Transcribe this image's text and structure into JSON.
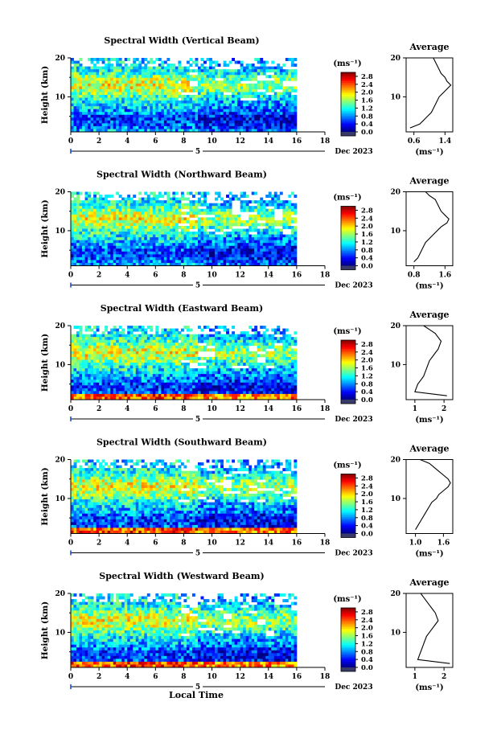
{
  "chart_data": [
    {
      "type": "heatmap",
      "title": "Spectral Width (Vertical Beam)",
      "ylabel": "Height (km)",
      "x_ticks": [
        "0",
        "2",
        "4",
        "6",
        "8",
        "10",
        "12",
        "14",
        "16",
        "18"
      ],
      "y_ticks": [
        "20",
        "10"
      ],
      "xlim": [
        0,
        18
      ],
      "ylim": [
        1,
        20
      ],
      "data_end_hour": 16,
      "date_day": "5",
      "date_label": "Dec 2023",
      "colorbar": {
        "unit": "(ms⁻¹)",
        "ticks": [
          "2.8",
          "2.4",
          "2.0",
          "1.6",
          "1.2",
          "0.8",
          "0.4",
          "0.0"
        ],
        "range": [
          0,
          3.0
        ]
      },
      "profile": {
        "title": "Average",
        "xlabel": "(ms⁻¹)",
        "x_ticks": [
          "0.6",
          "1.4"
        ],
        "xlim": [
          0.4,
          1.6
        ],
        "heights": [
          2,
          3,
          4,
          5,
          6,
          7,
          8,
          9,
          10,
          11,
          12,
          13,
          14,
          15,
          16,
          17,
          18,
          19,
          20
        ],
        "values": [
          0.5,
          0.75,
          0.85,
          0.95,
          1.05,
          1.1,
          1.15,
          1.2,
          1.25,
          1.35,
          1.45,
          1.55,
          1.45,
          1.4,
          1.3,
          1.25,
          1.2,
          1.15,
          1.1
        ]
      }
    },
    {
      "type": "heatmap",
      "title": "Spectral Width (Northward Beam)",
      "ylabel": "Height (km)",
      "x_ticks": [
        "0",
        "2",
        "4",
        "6",
        "8",
        "10",
        "12",
        "14",
        "16",
        "18"
      ],
      "y_ticks": [
        "20",
        "10"
      ],
      "xlim": [
        0,
        18
      ],
      "ylim": [
        1,
        20
      ],
      "data_end_hour": 16,
      "date_day": "5",
      "date_label": "Dec 2023",
      "colorbar": {
        "unit": "(ms⁻¹)",
        "ticks": [
          "2.8",
          "2.4",
          "2.0",
          "1.6",
          "1.2",
          "0.8",
          "0.4",
          "0.0"
        ],
        "range": [
          0,
          3.0
        ]
      },
      "profile": {
        "title": "Average",
        "xlabel": "(ms⁻¹)",
        "x_ticks": [
          "0.8",
          "1.6"
        ],
        "xlim": [
          0.6,
          1.8
        ],
        "heights": [
          2,
          3,
          4,
          5,
          6,
          7,
          8,
          9,
          10,
          11,
          12,
          13,
          14,
          15,
          16,
          17,
          18,
          19,
          20
        ],
        "values": [
          0.8,
          0.9,
          0.95,
          1.0,
          1.05,
          1.1,
          1.2,
          1.3,
          1.4,
          1.5,
          1.65,
          1.7,
          1.6,
          1.5,
          1.45,
          1.4,
          1.35,
          1.2,
          1.1
        ]
      }
    },
    {
      "type": "heatmap",
      "title": "Spectral Width (Eastward Beam)",
      "ylabel": "Height (km)",
      "x_ticks": [
        "0",
        "2",
        "4",
        "6",
        "8",
        "10",
        "12",
        "14",
        "16",
        "18"
      ],
      "y_ticks": [
        "20",
        "10"
      ],
      "xlim": [
        0,
        18
      ],
      "ylim": [
        1,
        20
      ],
      "data_end_hour": 16,
      "date_day": "5",
      "date_label": "Dec 2023",
      "colorbar": {
        "unit": "(ms⁻¹)",
        "ticks": [
          "2.8",
          "2.4",
          "2.0",
          "1.6",
          "1.2",
          "0.8",
          "0.4",
          "0.0"
        ],
        "range": [
          0,
          3.0
        ]
      },
      "profile": {
        "title": "Average",
        "xlabel": "(ms⁻¹)",
        "x_ticks": [
          "1",
          "2"
        ],
        "xlim": [
          0.7,
          2.3
        ],
        "heights": [
          2,
          3,
          4,
          5,
          6,
          7,
          8,
          9,
          10,
          11,
          12,
          13,
          14,
          15,
          16,
          17,
          18,
          19,
          20
        ],
        "values": [
          2.1,
          1.0,
          1.05,
          1.1,
          1.2,
          1.3,
          1.35,
          1.4,
          1.45,
          1.5,
          1.6,
          1.7,
          1.8,
          1.85,
          1.9,
          1.8,
          1.7,
          1.5,
          1.3
        ]
      }
    },
    {
      "type": "heatmap",
      "title": "Spectral Width (Southward Beam)",
      "ylabel": "Height (km)",
      "x_ticks": [
        "0",
        "2",
        "4",
        "6",
        "8",
        "10",
        "12",
        "14",
        "16",
        "18"
      ],
      "y_ticks": [
        "20",
        "10"
      ],
      "xlim": [
        0,
        18
      ],
      "ylim": [
        1,
        20
      ],
      "data_end_hour": 16,
      "date_day": "5",
      "date_label": "Dec 2023",
      "colorbar": {
        "unit": "(ms⁻¹)",
        "ticks": [
          "2.8",
          "2.4",
          "2.0",
          "1.6",
          "1.2",
          "0.8",
          "0.4",
          "0.0"
        ],
        "range": [
          0,
          3.0
        ]
      },
      "profile": {
        "title": "Average",
        "xlabel": "(ms⁻¹)",
        "x_ticks": [
          "1.0",
          "1.6"
        ],
        "xlim": [
          0.8,
          1.8
        ],
        "heights": [
          2,
          3,
          4,
          5,
          6,
          7,
          8,
          9,
          10,
          11,
          12,
          13,
          14,
          15,
          16,
          17,
          18,
          19,
          20
        ],
        "values": [
          1.0,
          1.05,
          1.1,
          1.15,
          1.2,
          1.25,
          1.3,
          1.35,
          1.45,
          1.5,
          1.6,
          1.7,
          1.75,
          1.7,
          1.6,
          1.5,
          1.4,
          1.3,
          1.1
        ]
      }
    },
    {
      "type": "heatmap",
      "title": "Spectral Width (Westward Beam)",
      "ylabel": "Height (km)",
      "xlabel": "Local Time",
      "x_ticks": [
        "0",
        "2",
        "4",
        "6",
        "8",
        "10",
        "12",
        "14",
        "16",
        "18"
      ],
      "y_ticks": [
        "20",
        "10"
      ],
      "xlim": [
        0,
        18
      ],
      "ylim": [
        1,
        20
      ],
      "data_end_hour": 16,
      "date_day": "5",
      "date_label": "Dec 2023",
      "colorbar": {
        "unit": "(ms⁻¹)",
        "ticks": [
          "2.8",
          "2.4",
          "2.0",
          "1.6",
          "1.2",
          "0.8",
          "0.4",
          "0.0"
        ],
        "range": [
          0,
          3.0
        ]
      },
      "profile": {
        "title": "Average",
        "xlabel": "(ms⁻¹)",
        "x_ticks": [
          "1",
          "2"
        ],
        "xlim": [
          0.7,
          2.3
        ],
        "heights": [
          2,
          3,
          4,
          5,
          6,
          7,
          8,
          9,
          10,
          11,
          12,
          13,
          14,
          15,
          16,
          17,
          18,
          19,
          20
        ],
        "values": [
          2.2,
          1.1,
          1.15,
          1.2,
          1.25,
          1.3,
          1.35,
          1.4,
          1.5,
          1.6,
          1.7,
          1.8,
          1.75,
          1.7,
          1.6,
          1.5,
          1.4,
          1.3,
          1.2
        ]
      }
    }
  ]
}
